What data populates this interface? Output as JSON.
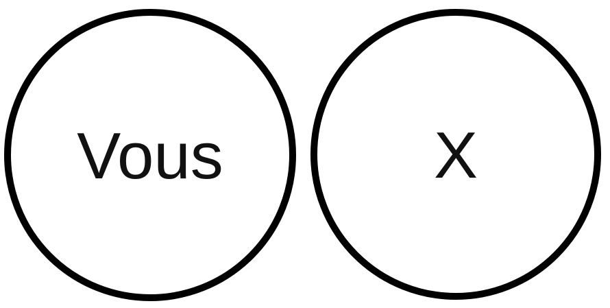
{
  "diagram": {
    "stroke_color": "#000000",
    "text_color": "#111111",
    "background_color": "#ffffff",
    "circles": [
      {
        "label": "Vous"
      },
      {
        "label": "X"
      }
    ]
  }
}
